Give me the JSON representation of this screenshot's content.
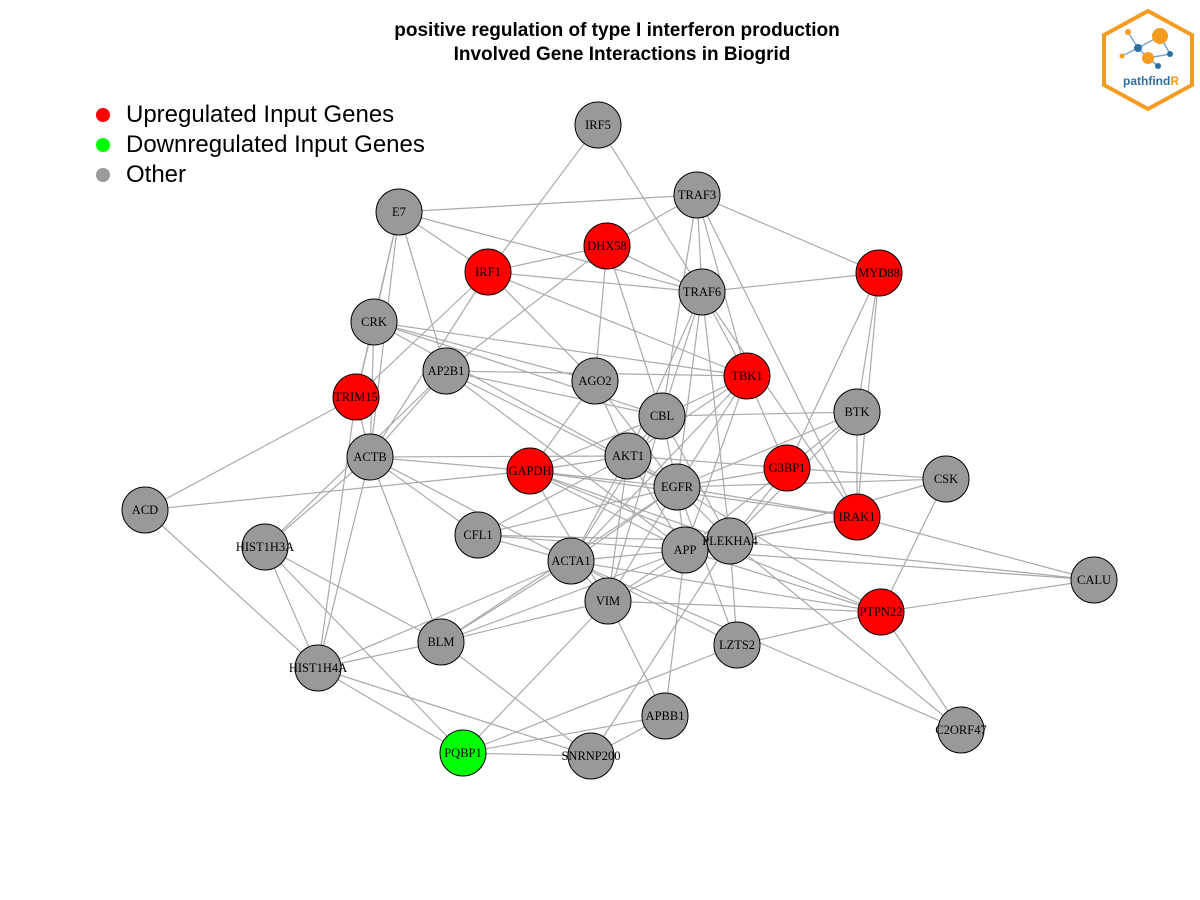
{
  "title": {
    "line1": "positive regulation of type I interferon production",
    "line2": "Involved Gene Interactions in Biogrid"
  },
  "legend": [
    {
      "label": "Upregulated Input Genes",
      "color": "#ff0000"
    },
    {
      "label": "Downregulated Input Genes",
      "color": "#00ff00"
    },
    {
      "label": "Other",
      "color": "#999999"
    }
  ],
  "colors": {
    "up": "#ff0000",
    "down": "#00ff00",
    "other": "#999999",
    "edge": "#aaaaaa"
  },
  "logo": {
    "text_main": "pathfind",
    "text_accent": "R",
    "border_color": "#f39c1f",
    "text_color": "#2f6f9f"
  },
  "nodes": [
    {
      "id": "IRF5",
      "status": "other"
    },
    {
      "id": "TRAF3",
      "status": "other"
    },
    {
      "id": "E7",
      "status": "other"
    },
    {
      "id": "DHX58",
      "status": "up"
    },
    {
      "id": "IRF1",
      "status": "up"
    },
    {
      "id": "TRAF6",
      "status": "other"
    },
    {
      "id": "MYD88",
      "status": "up"
    },
    {
      "id": "CRK",
      "status": "other"
    },
    {
      "id": "AP2B1",
      "status": "other"
    },
    {
      "id": "AGO2",
      "status": "other"
    },
    {
      "id": "TBK1",
      "status": "up"
    },
    {
      "id": "TRIM15",
      "status": "up"
    },
    {
      "id": "CBL",
      "status": "other"
    },
    {
      "id": "BTK",
      "status": "other"
    },
    {
      "id": "ACTB",
      "status": "other"
    },
    {
      "id": "AKT1",
      "status": "other"
    },
    {
      "id": "GAPDH",
      "status": "up"
    },
    {
      "id": "G3BP1",
      "status": "up"
    },
    {
      "id": "CSK",
      "status": "other"
    },
    {
      "id": "EGFR",
      "status": "other"
    },
    {
      "id": "ACD",
      "status": "other"
    },
    {
      "id": "IRAK1",
      "status": "up"
    },
    {
      "id": "HIST1H3A",
      "status": "other"
    },
    {
      "id": "CFL1",
      "status": "other"
    },
    {
      "id": "APP",
      "status": "other"
    },
    {
      "id": "PLEKHA4",
      "status": "other"
    },
    {
      "id": "ACTA1",
      "status": "other"
    },
    {
      "id": "CALU",
      "status": "other"
    },
    {
      "id": "VIM",
      "status": "other"
    },
    {
      "id": "PTPN22",
      "status": "up"
    },
    {
      "id": "BLM",
      "status": "other"
    },
    {
      "id": "LZTS2",
      "status": "other"
    },
    {
      "id": "HIST1H4A",
      "status": "other"
    },
    {
      "id": "APBB1",
      "status": "other"
    },
    {
      "id": "C2ORF47",
      "status": "other"
    },
    {
      "id": "PQBP1",
      "status": "down"
    },
    {
      "id": "SNRNP200",
      "status": "other"
    }
  ],
  "edges": [
    [
      "IRF5",
      "IRF1"
    ],
    [
      "IRF5",
      "TRAF6"
    ],
    [
      "TRAF3",
      "E7"
    ],
    [
      "TRAF3",
      "DHX58"
    ],
    [
      "TRAF3",
      "MYD88"
    ],
    [
      "TRAF3",
      "TRAF6"
    ],
    [
      "TRAF3",
      "TBK1"
    ],
    [
      "TRAF3",
      "CBL"
    ],
    [
      "TRAF3",
      "IRAK1"
    ],
    [
      "E7",
      "IRF1"
    ],
    [
      "E7",
      "CRK"
    ],
    [
      "E7",
      "TRIM15"
    ],
    [
      "E7",
      "TRAF6"
    ],
    [
      "E7",
      "AP2B1"
    ],
    [
      "E7",
      "ACTB"
    ],
    [
      "DHX58",
      "IRF1"
    ],
    [
      "DHX58",
      "TRAF6"
    ],
    [
      "DHX58",
      "AGO2"
    ],
    [
      "DHX58",
      "CBL"
    ],
    [
      "DHX58",
      "AP2B1"
    ],
    [
      "IRF1",
      "TRAF6"
    ],
    [
      "IRF1",
      "TBK1"
    ],
    [
      "IRF1",
      "AGO2"
    ],
    [
      "IRF1",
      "TRIM15"
    ],
    [
      "IRF1",
      "ACTB"
    ],
    [
      "TRAF6",
      "MYD88"
    ],
    [
      "TRAF6",
      "TBK1"
    ],
    [
      "TRAF6",
      "CBL"
    ],
    [
      "TRAF6",
      "AKT1"
    ],
    [
      "TRAF6",
      "EGFR"
    ],
    [
      "TRAF6",
      "IRAK1"
    ],
    [
      "TRAF6",
      "PLEKHA4"
    ],
    [
      "MYD88",
      "BTK"
    ],
    [
      "MYD88",
      "IRAK1"
    ],
    [
      "MYD88",
      "G3BP1"
    ],
    [
      "CRK",
      "TRIM15"
    ],
    [
      "CRK",
      "ACTB"
    ],
    [
      "CRK",
      "CBL"
    ],
    [
      "CRK",
      "EGFR"
    ],
    [
      "CRK",
      "AGO2"
    ],
    [
      "CRK",
      "TBK1"
    ],
    [
      "AP2B1",
      "ACTB"
    ],
    [
      "AP2B1",
      "EGFR"
    ],
    [
      "AP2B1",
      "CBL"
    ],
    [
      "AP2B1",
      "TBK1"
    ],
    [
      "AP2B1",
      "APP"
    ],
    [
      "AP2B1",
      "HIST1H3A"
    ],
    [
      "AGO2",
      "GAPDH"
    ],
    [
      "AGO2",
      "EGFR"
    ],
    [
      "AGO2",
      "AKT1"
    ],
    [
      "TBK1",
      "CBL"
    ],
    [
      "TBK1",
      "AKT1"
    ],
    [
      "TBK1",
      "EGFR"
    ],
    [
      "TBK1",
      "G3BP1"
    ],
    [
      "TBK1",
      "ACTA1"
    ],
    [
      "TBK1",
      "APP"
    ],
    [
      "TRIM15",
      "ACTB"
    ],
    [
      "TRIM15",
      "ACD"
    ],
    [
      "TRIM15",
      "HIST1H4A"
    ],
    [
      "CBL",
      "BTK"
    ],
    [
      "CBL",
      "AKT1"
    ],
    [
      "CBL",
      "EGFR"
    ],
    [
      "CBL",
      "GAPDH"
    ],
    [
      "CBL",
      "ACTA1"
    ],
    [
      "CBL",
      "VIM"
    ],
    [
      "CBL",
      "PLEKHA4"
    ],
    [
      "BTK",
      "G3BP1"
    ],
    [
      "BTK",
      "IRAK1"
    ],
    [
      "BTK",
      "EGFR"
    ],
    [
      "BTK",
      "PLEKHA4"
    ],
    [
      "ACTB",
      "GAPDH"
    ],
    [
      "ACTB",
      "AKT1"
    ],
    [
      "ACTB",
      "CFL1"
    ],
    [
      "ACTB",
      "ACTA1"
    ],
    [
      "ACTB",
      "BLM"
    ],
    [
      "ACTB",
      "HIST1H3A"
    ],
    [
      "ACTB",
      "HIST1H4A"
    ],
    [
      "AKT1",
      "GAPDH"
    ],
    [
      "AKT1",
      "EGFR"
    ],
    [
      "AKT1",
      "APP"
    ],
    [
      "AKT1",
      "CFL1"
    ],
    [
      "AKT1",
      "ACTA1"
    ],
    [
      "AKT1",
      "VIM"
    ],
    [
      "AKT1",
      "G3BP1"
    ],
    [
      "GAPDH",
      "ACD"
    ],
    [
      "GAPDH",
      "EGFR"
    ],
    [
      "GAPDH",
      "APP"
    ],
    [
      "GAPDH",
      "IRAK1"
    ],
    [
      "GAPDH",
      "PTPN22"
    ],
    [
      "GAPDH",
      "VIM"
    ],
    [
      "GAPDH",
      "PLEKHA4"
    ],
    [
      "G3BP1",
      "EGFR"
    ],
    [
      "G3BP1",
      "APP"
    ],
    [
      "G3BP1",
      "PLEKHA4"
    ],
    [
      "G3BP1",
      "CSK"
    ],
    [
      "CSK",
      "EGFR"
    ],
    [
      "CSK",
      "PTPN22"
    ],
    [
      "CSK",
      "PLEKHA4"
    ],
    [
      "EGFR",
      "CFL1"
    ],
    [
      "EGFR",
      "APP"
    ],
    [
      "EGFR",
      "IRAK1"
    ],
    [
      "EGFR",
      "PLEKHA4"
    ],
    [
      "EGFR",
      "ACTA1"
    ],
    [
      "EGFR",
      "VIM"
    ],
    [
      "EGFR",
      "PTPN22"
    ],
    [
      "EGFR",
      "LZTS2"
    ],
    [
      "EGFR",
      "BLM"
    ],
    [
      "ACD",
      "HIST1H4A"
    ],
    [
      "IRAK1",
      "APP"
    ],
    [
      "IRAK1",
      "CALU"
    ],
    [
      "IRAK1",
      "PLEKHA4"
    ],
    [
      "HIST1H3A",
      "HIST1H4A"
    ],
    [
      "HIST1H3A",
      "BLM"
    ],
    [
      "HIST1H3A",
      "PQBP1"
    ],
    [
      "CFL1",
      "APP"
    ],
    [
      "CFL1",
      "ACTA1"
    ],
    [
      "CFL1",
      "PLEKHA4"
    ],
    [
      "APP",
      "PLEKHA4"
    ],
    [
      "APP",
      "ACTA1"
    ],
    [
      "APP",
      "VIM"
    ],
    [
      "APP",
      "PTPN22"
    ],
    [
      "APP",
      "APBB1"
    ],
    [
      "APP",
      "BLM"
    ],
    [
      "APP",
      "CALU"
    ],
    [
      "PLEKHA4",
      "VIM"
    ],
    [
      "PLEKHA4",
      "LZTS2"
    ],
    [
      "PLEKHA4",
      "CALU"
    ],
    [
      "PLEKHA4",
      "C2ORF47"
    ],
    [
      "PLEKHA4",
      "SNRNP200"
    ],
    [
      "ACTA1",
      "VIM"
    ],
    [
      "ACTA1",
      "BLM"
    ],
    [
      "ACTA1",
      "PTPN22"
    ],
    [
      "ACTA1",
      "HIST1H4A"
    ],
    [
      "ACTA1",
      "LZTS2"
    ],
    [
      "ACTA1",
      "C2ORF47"
    ],
    [
      "CALU",
      "PTPN22"
    ],
    [
      "VIM",
      "PTPN22"
    ],
    [
      "VIM",
      "BLM"
    ],
    [
      "VIM",
      "PQBP1"
    ],
    [
      "VIM",
      "APBB1"
    ],
    [
      "PTPN22",
      "LZTS2"
    ],
    [
      "PTPN22",
      "C2ORF47"
    ],
    [
      "BLM",
      "HIST1H4A"
    ],
    [
      "BLM",
      "SNRNP200"
    ],
    [
      "LZTS2",
      "PQBP1"
    ],
    [
      "HIST1H4A",
      "PQBP1"
    ],
    [
      "HIST1H4A",
      "SNRNP200"
    ],
    [
      "APBB1",
      "PQBP1"
    ],
    [
      "APBB1",
      "SNRNP200"
    ],
    [
      "PQBP1",
      "SNRNP200"
    ]
  ]
}
